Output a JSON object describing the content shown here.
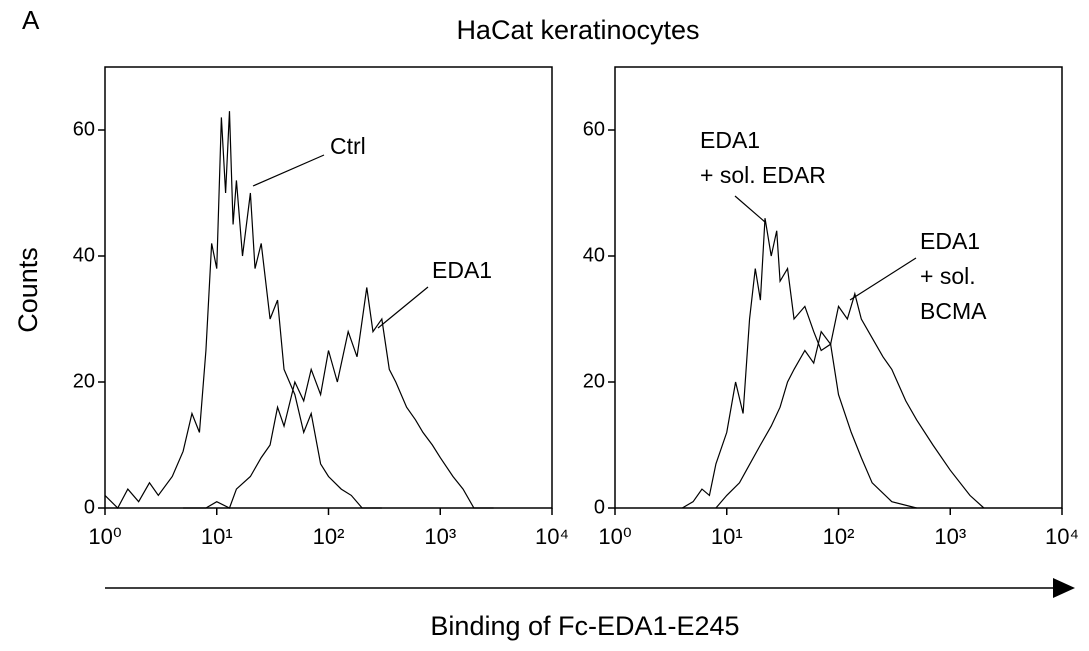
{
  "panel_label": "A",
  "title": "HaCat keratinocytes",
  "y_label": "Counts",
  "x_label": "Binding of Fc-EDA1-E245",
  "chart_data": [
    {
      "type": "line",
      "xscale": "log",
      "xlim": [
        1,
        10000
      ],
      "ylim": [
        0,
        70
      ],
      "xticks": [
        {
          "value": 1,
          "label": "10⁰"
        },
        {
          "value": 10,
          "label": "10¹"
        },
        {
          "value": 100,
          "label": "10²"
        },
        {
          "value": 1000,
          "label": "10³"
        },
        {
          "value": 10000,
          "label": "10⁴"
        }
      ],
      "yticks": [
        0,
        20,
        40,
        60
      ],
      "series": [
        {
          "label_lines": [
            "Ctrl"
          ],
          "color": "#000000",
          "x": [
            1,
            1.3,
            1.6,
            2,
            2.5,
            3,
            4,
            5,
            6,
            7,
            8,
            9,
            10,
            11,
            12,
            13,
            14,
            15,
            17,
            20,
            22,
            25,
            30,
            35,
            40,
            50,
            60,
            70,
            85,
            100,
            130,
            160,
            200,
            300
          ],
          "values": [
            2,
            0,
            3,
            1,
            4,
            2,
            5,
            9,
            15,
            12,
            25,
            42,
            38,
            62,
            50,
            63,
            45,
            52,
            40,
            50,
            38,
            42,
            30,
            33,
            22,
            18,
            12,
            15,
            7,
            5,
            3,
            2,
            0,
            0
          ]
        },
        {
          "label_lines": [
            "EDA1"
          ],
          "color": "#000000",
          "x": [
            5,
            8,
            10,
            13,
            15,
            20,
            25,
            30,
            35,
            40,
            50,
            60,
            70,
            85,
            100,
            120,
            150,
            180,
            220,
            250,
            300,
            350,
            400,
            500,
            600,
            700,
            850,
            1000,
            1300,
            1600,
            2000,
            3000
          ],
          "values": [
            0,
            0,
            1,
            0,
            3,
            5,
            8,
            10,
            16,
            13,
            20,
            17,
            22,
            18,
            25,
            20,
            28,
            24,
            35,
            28,
            30,
            22,
            20,
            16,
            14,
            12,
            10,
            8,
            5,
            3,
            0,
            0
          ]
        }
      ]
    },
    {
      "type": "line",
      "xscale": "log",
      "xlim": [
        1,
        10000
      ],
      "ylim": [
        0,
        70
      ],
      "xticks": [
        {
          "value": 1,
          "label": "10⁰"
        },
        {
          "value": 10,
          "label": "10¹"
        },
        {
          "value": 100,
          "label": "10²"
        },
        {
          "value": 1000,
          "label": "10³"
        },
        {
          "value": 10000,
          "label": "10⁴"
        }
      ],
      "yticks": [
        0,
        20,
        40,
        60
      ],
      "series": [
        {
          "label_lines": [
            "EDA1",
            "+ sol. EDAR"
          ],
          "color": "#000000",
          "x": [
            4,
            5,
            6,
            7,
            8,
            10,
            12,
            14,
            16,
            18,
            20,
            22,
            25,
            28,
            30,
            35,
            40,
            50,
            60,
            70,
            85,
            100,
            130,
            160,
            200,
            300,
            500
          ],
          "values": [
            0,
            1,
            3,
            2,
            7,
            12,
            20,
            15,
            30,
            38,
            33,
            46,
            40,
            44,
            36,
            38,
            30,
            32,
            28,
            25,
            26,
            18,
            12,
            8,
            4,
            1,
            0
          ]
        },
        {
          "label_lines": [
            "EDA1",
            "+ sol.",
            "BCMA"
          ],
          "color": "#000000",
          "x": [
            8,
            10,
            13,
            15,
            20,
            25,
            30,
            35,
            40,
            50,
            60,
            70,
            85,
            100,
            120,
            140,
            160,
            200,
            250,
            300,
            400,
            500,
            700,
            1000,
            1500,
            2000
          ],
          "values": [
            0,
            2,
            4,
            6,
            10,
            13,
            16,
            20,
            22,
            25,
            23,
            28,
            26,
            32,
            30,
            34,
            30,
            27,
            24,
            22,
            17,
            14,
            10,
            6,
            2,
            0
          ]
        }
      ]
    }
  ]
}
